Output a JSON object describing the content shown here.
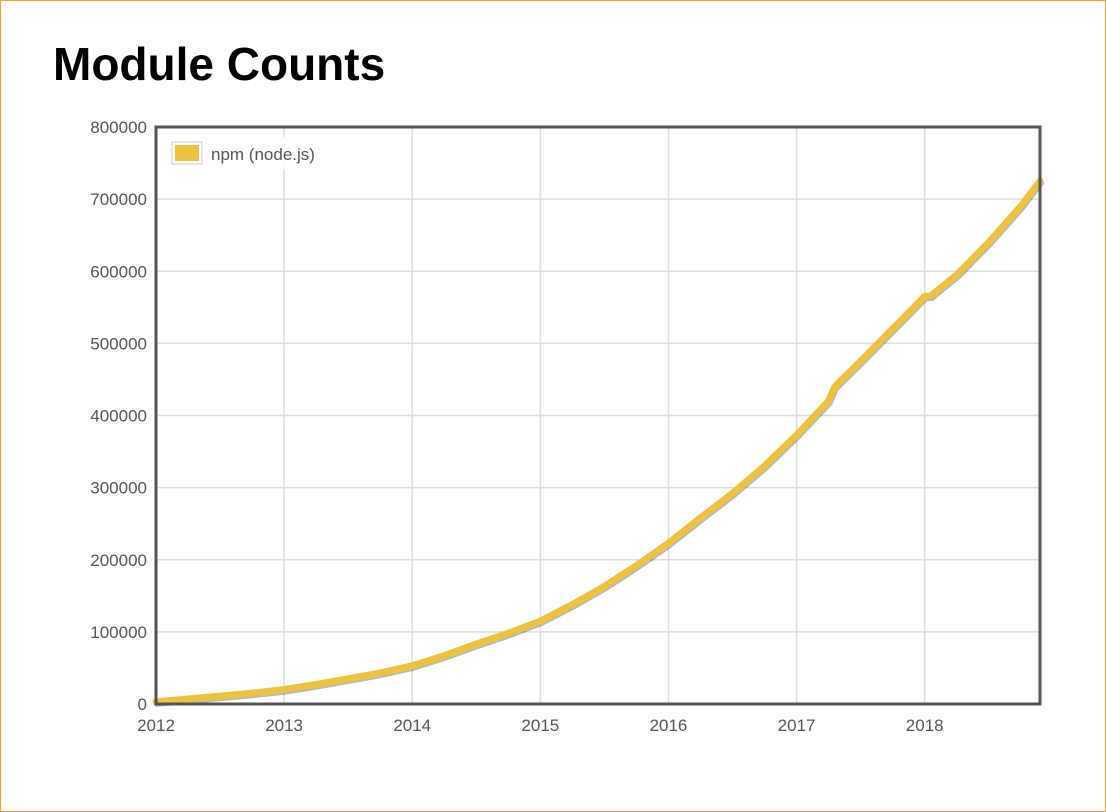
{
  "page": {
    "title": "Module Counts"
  },
  "colors": {
    "series": "#edc240",
    "frame": "#f0a030",
    "grid": "#dddddd",
    "axis": "#545454",
    "text": "#555555"
  },
  "chart_data": {
    "type": "line",
    "title": "Module Counts",
    "xlabel": "",
    "ylabel": "",
    "xlim": [
      2012.0,
      2018.9
    ],
    "ylim": [
      0,
      800000
    ],
    "x_ticks": [
      "2012",
      "2013",
      "2014",
      "2015",
      "2016",
      "2017",
      "2018"
    ],
    "y_ticks": [
      "0",
      "100000",
      "200000",
      "300000",
      "400000",
      "500000",
      "600000",
      "700000",
      "800000"
    ],
    "grid": true,
    "legend": {
      "position": "top-left",
      "entries": [
        "npm (node.js)"
      ]
    },
    "series": [
      {
        "name": "npm (node.js)",
        "color": "#edc240",
        "x": [
          2012.0,
          2012.25,
          2012.5,
          2012.75,
          2013.0,
          2013.25,
          2013.5,
          2013.75,
          2014.0,
          2014.25,
          2014.5,
          2014.75,
          2015.0,
          2015.25,
          2015.5,
          2015.75,
          2016.0,
          2016.25,
          2016.5,
          2016.75,
          2017.0,
          2017.25,
          2017.3,
          2017.5,
          2017.75,
          2018.0,
          2018.05,
          2018.25,
          2018.5,
          2018.75,
          2018.9
        ],
        "values": [
          3000,
          7000,
          11000,
          15000,
          20000,
          27000,
          35000,
          43000,
          53000,
          67000,
          83000,
          98000,
          115000,
          138000,
          163000,
          192000,
          223000,
          258000,
          292000,
          330000,
          373000,
          420000,
          440000,
          475000,
          520000,
          565000,
          566000,
          595000,
          640000,
          690000,
          725000
        ]
      }
    ]
  }
}
